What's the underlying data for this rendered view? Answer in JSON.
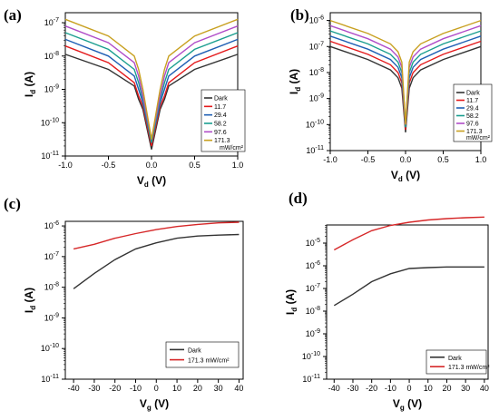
{
  "panels": [
    "(a)",
    "(b)",
    "(c)",
    "(d)"
  ],
  "colors": {
    "Dark": "#333333",
    "11.7": "#e41a1c",
    "29.4": "#1f5fb4",
    "58.2": "#1a9e8f",
    "97.6": "#b04dc8",
    "171.3": "#c8a020"
  },
  "chart_data": [
    {
      "panel": "(a)",
      "type": "line",
      "y_scale": "log",
      "xlabel_main": "V",
      "xlabel_sub": "d",
      "xlabel_unit": " (V)",
      "ylabel_main": "I",
      "ylabel_sub": "d",
      "ylabel_unit": " (A)",
      "xlim": [
        -1.0,
        1.0
      ],
      "ylim_exp": [
        -11,
        -6.7
      ],
      "x_ticks": [
        -1.0,
        -0.5,
        0.0,
        0.5,
        1.0
      ],
      "x_tick_labels": [
        "-1.0",
        "-0.5",
        "0.0",
        "0.5",
        "1.0"
      ],
      "y_tick_exps": [
        -11,
        -10,
        -9,
        -8,
        -7
      ],
      "y_tick_labels": [
        {
          "base": "10",
          "exp": "-11"
        },
        {
          "base": "10",
          "exp": "-10"
        },
        {
          "base": "10",
          "exp": "-9"
        },
        {
          "base": "10",
          "exp": "-8"
        },
        {
          "base": "10",
          "exp": "-7"
        }
      ],
      "x": [
        -1.0,
        -0.5,
        -0.2,
        -0.15,
        -0.1,
        0.0,
        0.1,
        0.15,
        0.2,
        0.5,
        1.0
      ],
      "legend_unit": "mW/cm²",
      "series": [
        {
          "name": "Dark",
          "exp": [
            -7.95,
            -8.4,
            -8.9,
            -9.3,
            -9.6,
            -10.8,
            -9.6,
            -9.3,
            -8.9,
            -8.4,
            -7.95
          ]
        },
        {
          "name": "11.7",
          "exp": [
            -7.7,
            -8.2,
            -8.8,
            -9.2,
            -9.5,
            -10.7,
            -9.5,
            -9.2,
            -8.8,
            -8.2,
            -7.7
          ]
        },
        {
          "name": "29.4",
          "exp": [
            -7.5,
            -8.0,
            -8.6,
            -9.0,
            -9.4,
            -10.6,
            -9.4,
            -9.0,
            -8.6,
            -8.0,
            -7.5
          ]
        },
        {
          "name": "58.2",
          "exp": [
            -7.3,
            -7.8,
            -8.4,
            -8.8,
            -9.3,
            -10.6,
            -9.3,
            -8.8,
            -8.4,
            -7.8,
            -7.3
          ]
        },
        {
          "name": "97.6",
          "exp": [
            -7.1,
            -7.6,
            -8.2,
            -8.6,
            -9.2,
            -10.5,
            -9.2,
            -8.6,
            -8.2,
            -7.6,
            -7.1
          ]
        },
        {
          "name": "171.3",
          "exp": [
            -6.9,
            -7.4,
            -8.0,
            -8.4,
            -9.0,
            -10.5,
            -9.0,
            -8.4,
            -8.0,
            -7.4,
            -6.9
          ]
        }
      ]
    },
    {
      "panel": "(b)",
      "type": "line",
      "y_scale": "log",
      "xlabel_main": "V",
      "xlabel_sub": "d",
      "xlabel_unit": " (V)",
      "ylabel_main": "I",
      "ylabel_sub": "d",
      "ylabel_unit": " (A)",
      "xlim": [
        -1.0,
        1.0
      ],
      "ylim_exp": [
        -11,
        -5.7
      ],
      "x_ticks": [
        -1.0,
        -0.5,
        0.0,
        0.5,
        1.0
      ],
      "x_tick_labels": [
        "-1.0",
        "-0.5",
        "0.0",
        "0.5",
        "1.0"
      ],
      "y_tick_exps": [
        -11,
        -10,
        -9,
        -8,
        -7,
        -6
      ],
      "y_tick_labels": [
        {
          "base": "10",
          "exp": "-11"
        },
        {
          "base": "10",
          "exp": "-10"
        },
        {
          "base": "10",
          "exp": "-9"
        },
        {
          "base": "10",
          "exp": "-8"
        },
        {
          "base": "10",
          "exp": "-7"
        },
        {
          "base": "10",
          "exp": "-6"
        }
      ],
      "x": [
        -1.0,
        -0.5,
        -0.2,
        -0.1,
        -0.05,
        0.0,
        0.05,
        0.1,
        0.2,
        0.5,
        1.0
      ],
      "legend_unit": "mW/cm²",
      "series": [
        {
          "name": "Dark",
          "exp": [
            -7.0,
            -7.5,
            -7.9,
            -8.2,
            -8.6,
            -10.3,
            -8.6,
            -8.2,
            -7.9,
            -7.5,
            -7.0
          ]
        },
        {
          "name": "11.7",
          "exp": [
            -6.8,
            -7.3,
            -7.7,
            -8.0,
            -8.4,
            -10.2,
            -8.4,
            -8.0,
            -7.7,
            -7.3,
            -6.8
          ]
        },
        {
          "name": "29.4",
          "exp": [
            -6.6,
            -7.1,
            -7.5,
            -7.8,
            -8.2,
            -10.1,
            -8.2,
            -7.8,
            -7.5,
            -7.1,
            -6.6
          ]
        },
        {
          "name": "58.2",
          "exp": [
            -6.4,
            -6.9,
            -7.3,
            -7.6,
            -8.0,
            -10.1,
            -8.0,
            -7.6,
            -7.3,
            -6.9,
            -6.4
          ]
        },
        {
          "name": "97.6",
          "exp": [
            -6.2,
            -6.7,
            -7.1,
            -7.4,
            -7.8,
            -10.0,
            -7.8,
            -7.4,
            -7.1,
            -6.7,
            -6.2
          ]
        },
        {
          "name": "171.3",
          "exp": [
            -6.0,
            -6.5,
            -6.9,
            -7.2,
            -7.6,
            -10.0,
            -7.6,
            -7.2,
            -6.9,
            -6.5,
            -6.0
          ]
        }
      ]
    },
    {
      "panel": "(c)",
      "type": "line",
      "y_scale": "log",
      "xlabel_main": "V",
      "xlabel_sub": "g",
      "xlabel_unit": " (V)",
      "ylabel_main": "I",
      "ylabel_sub": "d",
      "ylabel_unit": " (A)",
      "xlim": [
        -44,
        42
      ],
      "ylim_exp": [
        -11,
        -5.85
      ],
      "x_ticks": [
        -40,
        -30,
        -20,
        -10,
        0,
        10,
        20,
        30,
        40
      ],
      "x_tick_labels": [
        "-40",
        "-30",
        "-20",
        "-10",
        "0",
        "10",
        "20",
        "30",
        "40"
      ],
      "y_tick_exps": [
        -11,
        -10,
        -9,
        -8,
        -7,
        -6
      ],
      "y_tick_labels": [
        {
          "base": "10",
          "exp": "-11"
        },
        {
          "base": "10",
          "exp": "-10"
        },
        {
          "base": "10",
          "exp": "-9"
        },
        {
          "base": "10",
          "exp": "-8"
        },
        {
          "base": "10",
          "exp": "-7"
        },
        {
          "base": "10",
          "exp": "-6"
        }
      ],
      "x": [
        -40,
        -30,
        -20,
        -10,
        0,
        10,
        20,
        30,
        40
      ],
      "legend_unit": "",
      "series": [
        {
          "name": "Dark",
          "exp": [
            -8.05,
            -7.55,
            -7.1,
            -6.75,
            -6.55,
            -6.4,
            -6.33,
            -6.3,
            -6.28
          ]
        },
        {
          "name": "171.3 mW/cm²",
          "exp": [
            -6.75,
            -6.6,
            -6.4,
            -6.25,
            -6.12,
            -6.02,
            -5.95,
            -5.9,
            -5.88
          ]
        }
      ]
    },
    {
      "panel": "(d)",
      "type": "line",
      "y_scale": "log",
      "xlabel_main": "V",
      "xlabel_sub": "g",
      "xlabel_unit": " (V)",
      "ylabel_main": "I",
      "ylabel_sub": "d",
      "ylabel_unit": " (A)",
      "xlim": [
        -44,
        42
      ],
      "ylim_exp": [
        -11,
        -4.2
      ],
      "x_ticks": [
        -40,
        -30,
        -20,
        -10,
        0,
        10,
        20,
        30,
        40
      ],
      "x_tick_labels": [
        "-40",
        "-30",
        "-20",
        "-10",
        "0",
        "10",
        "20",
        "30",
        "40"
      ],
      "y_tick_exps": [
        -11,
        -10,
        -9,
        -8,
        -7,
        -6,
        -5
      ],
      "y_tick_labels": [
        {
          "base": "10",
          "exp": "-11"
        },
        {
          "base": "10",
          "exp": "-10"
        },
        {
          "base": "10",
          "exp": "-9"
        },
        {
          "base": "10",
          "exp": "-8"
        },
        {
          "base": "10",
          "exp": "-7"
        },
        {
          "base": "10",
          "exp": "-6"
        },
        {
          "base": "10",
          "exp": "-5"
        }
      ],
      "x": [
        -40,
        -30,
        -20,
        -10,
        0,
        10,
        20,
        30,
        40
      ],
      "legend_unit": "",
      "series": [
        {
          "name": "Dark",
          "exp": [
            -7.75,
            -7.25,
            -6.7,
            -6.35,
            -6.12,
            -6.08,
            -6.05,
            -6.05,
            -6.05
          ]
        },
        {
          "name": "171.3 mW/cm²",
          "exp": [
            -5.3,
            -4.85,
            -4.45,
            -4.22,
            -4.08,
            -3.98,
            -3.92,
            -3.88,
            -3.85
          ]
        }
      ]
    }
  ]
}
